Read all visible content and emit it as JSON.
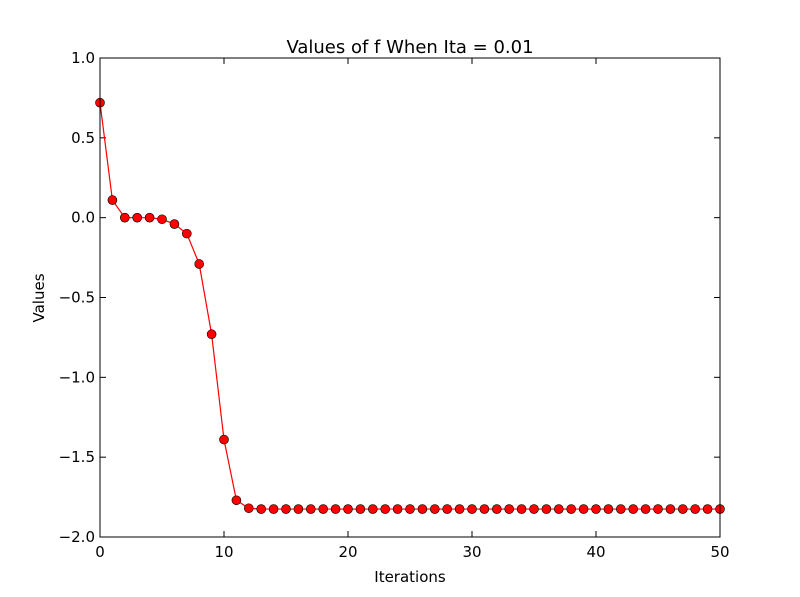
{
  "chart_data": {
    "type": "line",
    "title": "Values of f When Ita = 0.01",
    "xlabel": "Iterations",
    "ylabel": "Values",
    "xlim": [
      0,
      50
    ],
    "ylim": [
      -2.0,
      1.0
    ],
    "xticks": [
      0,
      10,
      20,
      30,
      40,
      50
    ],
    "xtick_labels": [
      "0",
      "10",
      "20",
      "30",
      "40",
      "50"
    ],
    "yticks": [
      1.0,
      0.5,
      0.0,
      -0.5,
      -1.0,
      -1.5,
      -2.0
    ],
    "ytick_labels": [
      "1.0",
      "0.5",
      "0.0",
      "−0.5",
      "−1.0",
      "−1.5",
      "−2.0"
    ],
    "grid": false,
    "series": [
      {
        "name": "f",
        "color": "#ff0000",
        "line_color": "#ff0000",
        "marker": "circle",
        "x": [
          0,
          1,
          2,
          3,
          4,
          5,
          6,
          7,
          8,
          9,
          10,
          11,
          12,
          13,
          14,
          15,
          16,
          17,
          18,
          19,
          20,
          21,
          22,
          23,
          24,
          25,
          26,
          27,
          28,
          29,
          30,
          31,
          32,
          33,
          34,
          35,
          36,
          37,
          38,
          39,
          40,
          41,
          42,
          43,
          44,
          45,
          46,
          47,
          48,
          49,
          50
        ],
        "values": [
          0.72,
          0.11,
          0.0,
          0.0,
          0.0,
          -0.01,
          -0.04,
          -0.1,
          -0.29,
          -0.73,
          -1.39,
          -1.77,
          -1.82,
          -1.825,
          -1.825,
          -1.825,
          -1.825,
          -1.825,
          -1.825,
          -1.825,
          -1.825,
          -1.825,
          -1.825,
          -1.825,
          -1.825,
          -1.825,
          -1.825,
          -1.825,
          -1.825,
          -1.825,
          -1.825,
          -1.825,
          -1.825,
          -1.825,
          -1.825,
          -1.825,
          -1.825,
          -1.825,
          -1.825,
          -1.825,
          -1.825,
          -1.825,
          -1.825,
          -1.825,
          -1.825,
          -1.825,
          -1.825,
          -1.825,
          -1.825,
          -1.825,
          -1.825
        ]
      }
    ]
  }
}
